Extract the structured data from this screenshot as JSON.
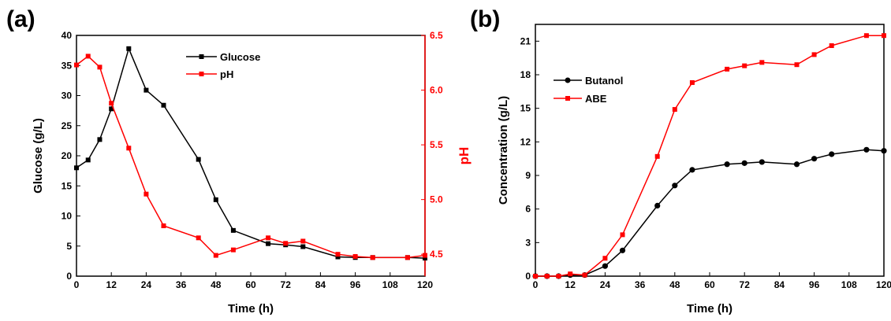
{
  "colors": {
    "black": "#000000",
    "red": "#ff0000"
  },
  "chart_data": [
    {
      "panel_label": "(a)",
      "type": "line",
      "xlabel": "Time (h)",
      "ylabel": "Glucose (g/L)",
      "y2label": "pH",
      "xlim": [
        0,
        120
      ],
      "ylim": [
        0,
        40
      ],
      "y2lim": [
        4.3,
        6.5
      ],
      "xticks": [
        "0",
        "12",
        "24",
        "36",
        "48",
        "60",
        "72",
        "84",
        "96",
        "108",
        "120"
      ],
      "yticks": [
        "0",
        "5",
        "10",
        "15",
        "20",
        "25",
        "30",
        "35",
        "40"
      ],
      "y2ticks": [
        "4.5",
        "5.0",
        "5.5",
        "6.0",
        "6.5"
      ],
      "legend_position": "top-right",
      "series": [
        {
          "name": "Glucose",
          "color": "#000000",
          "axis": "left",
          "marker": "square",
          "x": [
            0,
            4,
            8,
            12,
            18,
            24,
            30,
            42,
            48,
            54,
            66,
            72,
            78,
            90,
            96,
            102,
            114,
            120
          ],
          "y": [
            18.0,
            19.3,
            22.7,
            27.8,
            37.8,
            30.9,
            28.4,
            19.4,
            12.7,
            7.6,
            5.4,
            5.2,
            4.9,
            3.2,
            3.1,
            3.1,
            3.1,
            3.0
          ]
        },
        {
          "name": "pH",
          "color": "#ff0000",
          "axis": "right",
          "marker": "square",
          "x": [
            0,
            4,
            8,
            12,
            18,
            24,
            30,
            42,
            48,
            54,
            66,
            72,
            78,
            90,
            96,
            102,
            114,
            120
          ],
          "y": [
            6.23,
            6.31,
            6.21,
            5.88,
            5.47,
            5.05,
            4.76,
            4.65,
            4.49,
            4.54,
            4.65,
            4.6,
            4.62,
            4.5,
            4.48,
            4.47,
            4.47,
            4.49
          ]
        }
      ]
    },
    {
      "panel_label": "(b)",
      "type": "line",
      "xlabel": "Time (h)",
      "ylabel": "Concentration (g/L)",
      "xlim": [
        0,
        120
      ],
      "ylim": [
        0,
        22.5
      ],
      "xticks": [
        "0",
        "12",
        "24",
        "36",
        "48",
        "60",
        "72",
        "84",
        "96",
        "108",
        "120"
      ],
      "yticks": [
        "0",
        "3",
        "6",
        "9",
        "12",
        "15",
        "18",
        "21"
      ],
      "legend_position": "top-left",
      "series": [
        {
          "name": "Butanol",
          "color": "#000000",
          "marker": "circle",
          "x": [
            0,
            4,
            8,
            12,
            17,
            24,
            30,
            42,
            48,
            54,
            66,
            72,
            78,
            90,
            96,
            102,
            114,
            120
          ],
          "y": [
            0.0,
            0.0,
            0.0,
            0.1,
            0.1,
            0.9,
            2.3,
            6.3,
            8.1,
            9.5,
            10.0,
            10.1,
            10.2,
            10.0,
            10.5,
            10.9,
            11.3,
            11.2
          ]
        },
        {
          "name": "ABE",
          "color": "#ff0000",
          "marker": "square",
          "x": [
            0,
            4,
            8,
            12,
            17,
            24,
            30,
            42,
            48,
            54,
            66,
            72,
            78,
            90,
            96,
            102,
            114,
            120
          ],
          "y": [
            0.0,
            0.0,
            0.0,
            0.2,
            0.1,
            1.6,
            3.7,
            10.7,
            14.9,
            17.3,
            18.5,
            18.8,
            19.1,
            18.9,
            19.8,
            20.6,
            21.5,
            21.5
          ]
        }
      ]
    }
  ]
}
